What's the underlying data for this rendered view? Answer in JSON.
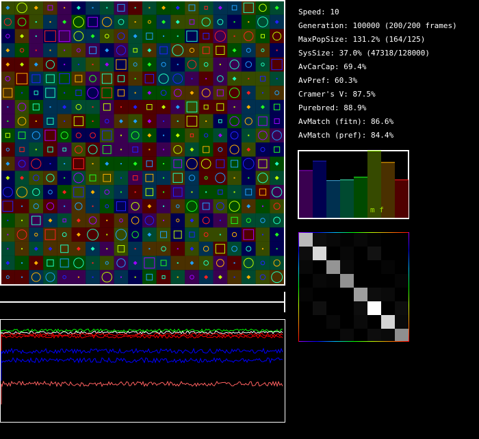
{
  "stats": [
    "Speed: 10",
    "Generation: 100000 (200/200 frames)",
    "MaxPopSize: 131.2% (164/125)",
    "SysSize: 37.0% (47318/128000)",
    "AvCarCap: 69.4%",
    "AvPref: 60.3%",
    "Cramer's V: 87.5%",
    "Purebred: 88.9%",
    "AvMatch (fitn): 86.6%",
    "AvMatch (pref): 84.4%"
  ],
  "bar_chart": {
    "label": "m f",
    "label_color": "#a0e000",
    "values": [
      0.71,
      0.85,
      0.56,
      0.57,
      0.61,
      1.0,
      0.83,
      0.57
    ],
    "fill_colors": [
      "#3a0050",
      "#000050",
      "#003050",
      "#004a30",
      "#004a00",
      "#364a00",
      "#4a3000",
      "#500000"
    ],
    "line_colors": [
      "#9000d0",
      "#2020c0",
      "#40a0d0",
      "#40e0b0",
      "#20ff20",
      "#a0ff00",
      "#ffb000",
      "#ff2020"
    ]
  },
  "matrix": {
    "values": [
      [
        0.73,
        0.05,
        0.03,
        0.01,
        0.03,
        0.01,
        0.0,
        0.0
      ],
      [
        0.05,
        0.85,
        0.0,
        0.03,
        0.0,
        0.07,
        0.0,
        0.0
      ],
      [
        0.03,
        0.0,
        0.58,
        0.04,
        0.0,
        0.0,
        0.02,
        0.0
      ],
      [
        0.0,
        0.03,
        0.02,
        0.57,
        0.0,
        0.0,
        0.0,
        0.02
      ],
      [
        0.02,
        0.0,
        0.0,
        0.0,
        0.62,
        0.05,
        0.04,
        0.0
      ],
      [
        0.0,
        0.06,
        0.0,
        0.0,
        0.05,
        1.0,
        0.0,
        0.05
      ],
      [
        0.0,
        0.0,
        0.03,
        0.0,
        0.04,
        0.0,
        0.83,
        0.04
      ],
      [
        0.0,
        0.0,
        0.0,
        0.04,
        0.0,
        0.05,
        0.04,
        0.56
      ]
    ]
  },
  "history_plot": {
    "series": [
      {
        "color": "#00ff00",
        "level": 0.89
      },
      {
        "color": "#ffffff",
        "level": 0.87
      },
      {
        "color": "#ff0000",
        "level": 0.85
      },
      {
        "color": "#ff0000",
        "level": 0.83
      },
      {
        "color": "#0000ff",
        "level": 0.69
      },
      {
        "color": "#0000ff",
        "level": 0.6
      },
      {
        "color": "#ff6060",
        "level": 0.37
      }
    ]
  },
  "population_grid": {
    "rows": 20,
    "cols": 20,
    "cell_colors": [
      "#000050",
      "#3a0050",
      "#003050",
      "#004a30",
      "#004a00",
      "#364a00",
      "#4a3000",
      "#500000"
    ],
    "mark_colors": [
      "#2020ff",
      "#a000ff",
      "#20a0ff",
      "#20ffc0",
      "#20ff20",
      "#c0ff00",
      "#ffb000",
      "#ff2020"
    ]
  }
}
